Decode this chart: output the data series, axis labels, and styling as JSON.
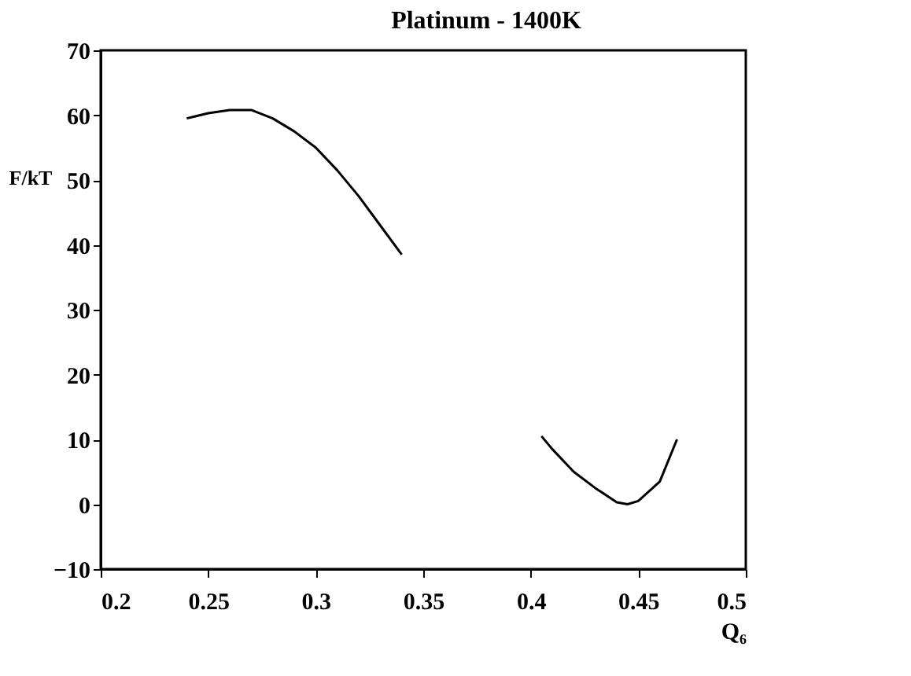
{
  "chart_data": {
    "type": "line",
    "title": "Platinum - 1400K",
    "xlabel": "Q₆",
    "ylabel": "F/kT",
    "xlim": [
      0.2,
      0.5
    ],
    "xticks": [
      0.2,
      0.25,
      0.3,
      0.35,
      0.4,
      0.45,
      0.5
    ],
    "ylim": [
      -10,
      70
    ],
    "yticks": [
      -10,
      0,
      10,
      20,
      30,
      40,
      50,
      60,
      70
    ],
    "grid": false,
    "legend": false,
    "marker": "none",
    "line_style": "solid",
    "series": [
      {
        "color": "#000000",
        "x": [
          0.24,
          0.25,
          0.26,
          0.27,
          0.28,
          0.29,
          0.3,
          0.31,
          0.32,
          0.33,
          0.34
        ],
        "values": [
          59.5,
          60.3,
          60.8,
          60.8,
          59.5,
          57.5,
          55,
          51.5,
          47.5,
          43,
          38.5
        ]
      },
      {
        "color": "#000000",
        "x": [
          0.405,
          0.41,
          0.42,
          0.43,
          0.44,
          0.445,
          0.45,
          0.46,
          0.468
        ],
        "values": [
          10.5,
          8.5,
          5,
          2.5,
          0.3,
          0,
          0.5,
          3.5,
          10
        ]
      }
    ]
  }
}
